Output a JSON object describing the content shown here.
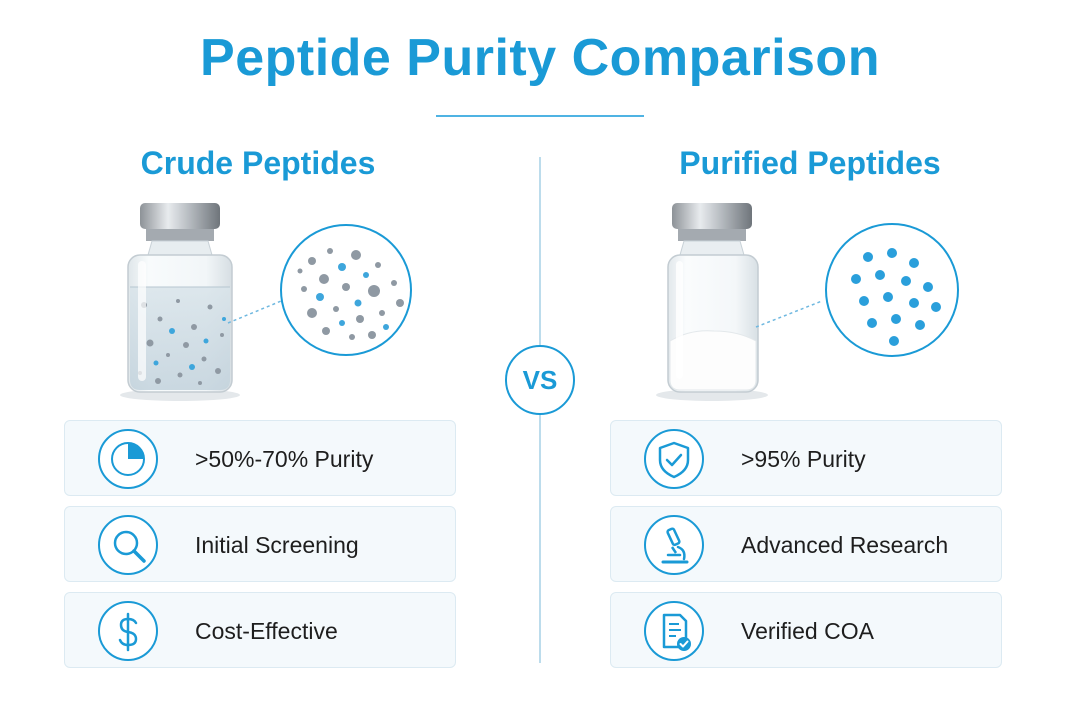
{
  "title": "Peptide Purity Comparison",
  "vs_label": "VS",
  "accent_color": "#1a9ad6",
  "left": {
    "heading": "Crude Peptides",
    "features": [
      {
        "icon": "purity-pie-chart-icon",
        "label": ">50%-70% Purity"
      },
      {
        "icon": "magnifying-glass-icon",
        "label": "Initial Screening"
      },
      {
        "icon": "dollar-sign-icon",
        "label": "Cost-Effective"
      }
    ]
  },
  "right": {
    "heading": "Purified Peptides",
    "features": [
      {
        "icon": "shield-check-icon",
        "label": ">95% Purity"
      },
      {
        "icon": "microscope-icon",
        "label": "Advanced Research"
      },
      {
        "icon": "certificate-document-icon",
        "label": "Verified COA"
      }
    ]
  }
}
